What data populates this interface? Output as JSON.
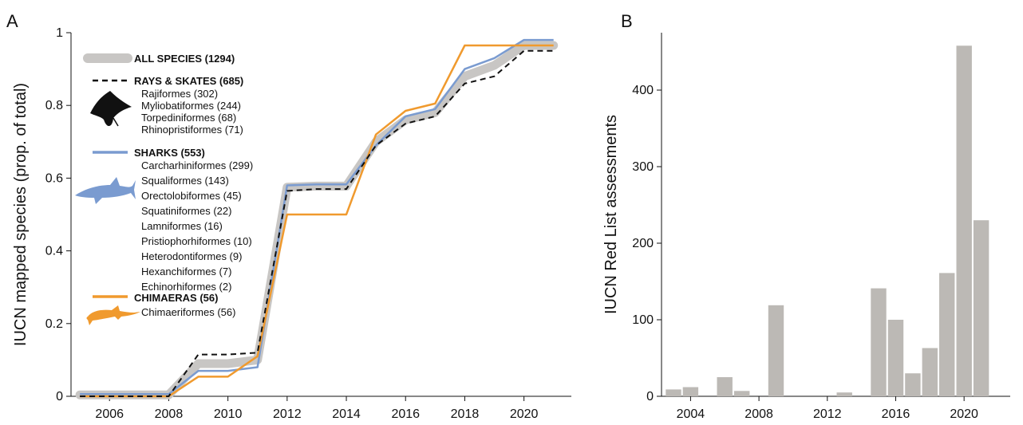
{
  "chart_data": [
    {
      "type": "line",
      "panel_label": "A",
      "ylabel": "IUCN mapped species (prop. of total)",
      "xlabel": "",
      "xlim": [
        2004.7,
        2021.6
      ],
      "ylim": [
        0,
        1
      ],
      "x_ticks": [
        2006,
        2008,
        2010,
        2012,
        2014,
        2016,
        2018,
        2020
      ],
      "y_ticks": [
        {
          "value": 0,
          "label": "0"
        },
        {
          "value": 0.2,
          "label": "0.2"
        },
        {
          "value": 0.4,
          "label": "0.4"
        },
        {
          "value": 0.6,
          "label": "0.6"
        },
        {
          "value": 0.8,
          "label": "0.8"
        },
        {
          "value": 1,
          "label": "1"
        }
      ],
      "series": [
        {
          "name": "ALL SPECIES (1294)",
          "color": "#c8c6c4",
          "style": "thick",
          "x": [
            2005,
            2008,
            2009,
            2010,
            2011,
            2012,
            2013,
            2014,
            2015,
            2016,
            2017,
            2018,
            2019,
            2020,
            2021
          ],
          "y": [
            0.004,
            0.004,
            0.09,
            0.09,
            0.1,
            0.575,
            0.578,
            0.578,
            0.7,
            0.76,
            0.78,
            0.88,
            0.91,
            0.965,
            0.965
          ]
        },
        {
          "name": "RAYS & SKATES (685)",
          "color": "#111111",
          "style": "dashed",
          "x": [
            2005,
            2008,
            2009,
            2010,
            2011,
            2012,
            2013,
            2014,
            2015,
            2016,
            2017,
            2018,
            2019,
            2020,
            2021
          ],
          "y": [
            0.0,
            0.0,
            0.115,
            0.115,
            0.12,
            0.565,
            0.57,
            0.57,
            0.69,
            0.75,
            0.77,
            0.86,
            0.88,
            0.95,
            0.95
          ]
        },
        {
          "name": "SHARKS (553)",
          "color": "#7a9bd0",
          "style": "solid",
          "x": [
            2005,
            2008,
            2009,
            2010,
            2011,
            2012,
            2013,
            2014,
            2015,
            2016,
            2017,
            2018,
            2019,
            2020,
            2021
          ],
          "y": [
            0.006,
            0.006,
            0.07,
            0.07,
            0.08,
            0.58,
            0.583,
            0.583,
            0.69,
            0.77,
            0.79,
            0.9,
            0.93,
            0.98,
            0.98
          ]
        },
        {
          "name": "CHIMAERAS (56)",
          "color": "#f09a2e",
          "style": "solid",
          "x": [
            2005,
            2008,
            2009,
            2010,
            2011,
            2012,
            2013,
            2014,
            2015,
            2016,
            2017,
            2018,
            2019,
            2020,
            2021
          ],
          "y": [
            0.0,
            0.0,
            0.054,
            0.054,
            0.11,
            0.5,
            0.5,
            0.5,
            0.72,
            0.785,
            0.805,
            0.965,
            0.965,
            0.965,
            0.965
          ]
        }
      ],
      "legend": {
        "placement": "top-left",
        "groups": [
          {
            "label": "ALL SPECIES (1294)",
            "series_index": 0,
            "items": []
          },
          {
            "label": "RAYS & SKATES (685)",
            "series_index": 1,
            "icon": "ray-silhouette",
            "items": [
              "Rajiformes (302)",
              "Myliobatiformes (244)",
              "Torpediniformes (68)",
              "Rhinopristiformes (71)"
            ]
          },
          {
            "label": "SHARKS (553)",
            "series_index": 2,
            "icon": "shark-silhouette",
            "items": [
              "Carcharhiniformes (299)",
              "Squaliformes (143)",
              "Orectolobiformes (45)",
              "Squatiniformes (22)",
              "Lamniformes (16)",
              "Pristiophorhiformes (10)",
              "Heterodontiformes (9)",
              "Hexanchiformes (7)",
              "Echinorhiformes (2)"
            ]
          },
          {
            "label": "CHIMAERAS (56)",
            "series_index": 3,
            "icon": "chimaera-silhouette",
            "items": [
              "Chimaeriformes (56)"
            ]
          }
        ]
      }
    },
    {
      "type": "bar",
      "panel_label": "B",
      "ylabel": "IUCN Red List assessments",
      "xlabel": "",
      "xlim": [
        2002.3,
        2022.7
      ],
      "ylim": [
        0,
        475
      ],
      "x_ticks": [
        2004,
        2008,
        2012,
        2016,
        2020
      ],
      "y_ticks": [
        {
          "value": 0,
          "label": "0"
        },
        {
          "value": 100,
          "label": "100"
        },
        {
          "value": 200,
          "label": "200"
        },
        {
          "value": 300,
          "label": "300"
        },
        {
          "value": 400,
          "label": "400"
        }
      ],
      "bar_color": "#bcb9b5",
      "categories": [
        2003,
        2004,
        2006,
        2007,
        2009,
        2013,
        2015,
        2016,
        2017,
        2018,
        2019,
        2020,
        2021
      ],
      "values": [
        9,
        12,
        25,
        7,
        119,
        5,
        141,
        100,
        30,
        63,
        161,
        458,
        230
      ]
    }
  ]
}
